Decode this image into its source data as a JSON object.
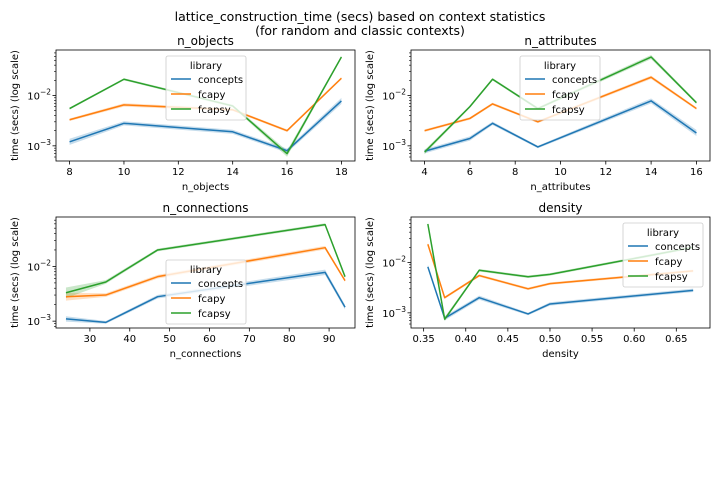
{
  "figure": {
    "suptitle_line1": "lattice_construction_time (secs) based on context statistics",
    "suptitle_line2": "(for random and classic contexts)"
  },
  "colors": {
    "concepts": "#1f77b4",
    "fcapy": "#ff7f0e",
    "fcapsy": "#2ca02c"
  },
  "chart_data": [
    {
      "type": "line",
      "title": "n_objects",
      "xlabel": "n_objects",
      "ylabel": "time (secs) (log scale)",
      "yscale": "log",
      "xlim": [
        7.5,
        18.5
      ],
      "ylim": [
        0.0005,
        0.08
      ],
      "xticks": [
        8,
        10,
        12,
        14,
        16,
        18
      ],
      "xtick_labels": [
        "8",
        "10",
        "12",
        "14",
        "16",
        "18"
      ],
      "grid": false,
      "legend": {
        "title": "library",
        "placement": "upper center"
      },
      "series": [
        {
          "name": "concepts",
          "x": [
            8,
            10,
            14,
            16,
            18
          ],
          "y": [
            0.0012,
            0.0028,
            0.0019,
            0.0008,
            0.0078
          ],
          "band": [
            0.15,
            0.1,
            0.1,
            0.1,
            0.15
          ]
        },
        {
          "name": "fcapy",
          "x": [
            8,
            10,
            14,
            16,
            18
          ],
          "y": [
            0.0033,
            0.0065,
            0.0052,
            0.002,
            0.022
          ],
          "band": [
            0.06,
            0.08,
            0.06,
            0.06,
            0.06
          ]
        },
        {
          "name": "fcapsy",
          "x": [
            8,
            10,
            14,
            16,
            18
          ],
          "y": [
            0.0055,
            0.021,
            0.0062,
            0.0007,
            0.058
          ],
          "band": [
            0.05,
            0.05,
            0.06,
            0.15,
            0.06
          ]
        }
      ]
    },
    {
      "type": "line",
      "title": "n_attributes",
      "xlabel": "n_attributes",
      "ylabel": "time (secs) (log scale)",
      "yscale": "log",
      "xlim": [
        3.4,
        16.6
      ],
      "ylim": [
        0.0005,
        0.08
      ],
      "xticks": [
        4,
        6,
        8,
        10,
        12,
        14,
        16
      ],
      "xtick_labels": [
        "4",
        "6",
        "8",
        "10",
        "12",
        "14",
        "16"
      ],
      "grid": false,
      "legend": {
        "title": "library",
        "placement": "upper center"
      },
      "series": [
        {
          "name": "concepts",
          "x": [
            4,
            6,
            7,
            9,
            14,
            16
          ],
          "y": [
            0.00078,
            0.0014,
            0.0028,
            0.00095,
            0.0078,
            0.0018
          ],
          "band": [
            0.1,
            0.1,
            0.08,
            0.06,
            0.12,
            0.15
          ]
        },
        {
          "name": "fcapy",
          "x": [
            4,
            6,
            7,
            9,
            14,
            16
          ],
          "y": [
            0.002,
            0.0035,
            0.0068,
            0.003,
            0.023,
            0.0055
          ],
          "band": [
            0.06,
            0.06,
            0.06,
            0.06,
            0.08,
            0.06
          ]
        },
        {
          "name": "fcapsy",
          "x": [
            4,
            6,
            7,
            9,
            14,
            16
          ],
          "y": [
            0.00075,
            0.006,
            0.021,
            0.0055,
            0.058,
            0.0072
          ],
          "band": [
            0.1,
            0.06,
            0.06,
            0.06,
            0.1,
            0.06
          ]
        }
      ]
    },
    {
      "type": "line",
      "title": "n_connections",
      "xlabel": "n_connections",
      "ylabel": "time (secs) (log scale)",
      "yscale": "log",
      "xlim": [
        21.5,
        96.5
      ],
      "ylim": [
        0.00075,
        0.08
      ],
      "xticks": [
        30,
        40,
        50,
        60,
        70,
        80,
        90
      ],
      "xtick_labels": [
        "30",
        "40",
        "50",
        "60",
        "70",
        "80",
        "90"
      ],
      "grid": false,
      "legend": {
        "title": "library",
        "placement": "lower center"
      },
      "series": [
        {
          "name": "concepts",
          "x": [
            24,
            34,
            47,
            89,
            94
          ],
          "y": [
            0.0011,
            0.00095,
            0.0028,
            0.0078,
            0.0018
          ],
          "band": [
            0.12,
            0.06,
            0.08,
            0.12,
            0.1
          ]
        },
        {
          "name": "fcapy",
          "x": [
            24,
            34,
            47,
            89,
            94
          ],
          "y": [
            0.0028,
            0.003,
            0.0065,
            0.022,
            0.0055
          ],
          "band": [
            0.18,
            0.08,
            0.08,
            0.08,
            0.06
          ]
        },
        {
          "name": "fcapsy",
          "x": [
            24,
            34,
            47,
            89,
            94
          ],
          "y": [
            0.0033,
            0.0052,
            0.02,
            0.058,
            0.0065
          ],
          "band": [
            0.25,
            0.08,
            0.06,
            0.06,
            0.06
          ]
        }
      ]
    },
    {
      "type": "line",
      "title": "density",
      "xlabel": "density",
      "ylabel": "time (secs) (log scale)",
      "yscale": "log",
      "xlim": [
        0.335,
        0.69
      ],
      "ylim": [
        0.0005,
        0.08
      ],
      "xticks": [
        0.35,
        0.4,
        0.45,
        0.5,
        0.55,
        0.6,
        0.65
      ],
      "xtick_labels": [
        "0.35",
        "0.40",
        "0.45",
        "0.50",
        "0.55",
        "0.60",
        "0.65"
      ],
      "grid": false,
      "legend": {
        "title": "library",
        "placement": "upper right"
      },
      "series": [
        {
          "name": "concepts",
          "x": [
            0.355,
            0.375,
            0.416,
            0.474,
            0.5,
            0.67
          ],
          "y": [
            0.0082,
            0.00078,
            0.002,
            0.00095,
            0.0015,
            0.0028
          ],
          "band": [
            0.1,
            0.1,
            0.1,
            0.06,
            0.08,
            0.08
          ]
        },
        {
          "name": "fcapy",
          "x": [
            0.355,
            0.375,
            0.416,
            0.474,
            0.5,
            0.67
          ],
          "y": [
            0.023,
            0.002,
            0.0055,
            0.003,
            0.0038,
            0.0068
          ],
          "band": [
            0.08,
            0.06,
            0.06,
            0.06,
            0.06,
            0.06
          ]
        },
        {
          "name": "fcapsy",
          "x": [
            0.355,
            0.375,
            0.416,
            0.474,
            0.5,
            0.67
          ],
          "y": [
            0.058,
            0.00075,
            0.007,
            0.0052,
            0.0058,
            0.02
          ],
          "band": [
            0.08,
            0.1,
            0.06,
            0.06,
            0.06,
            0.06
          ]
        }
      ]
    }
  ]
}
